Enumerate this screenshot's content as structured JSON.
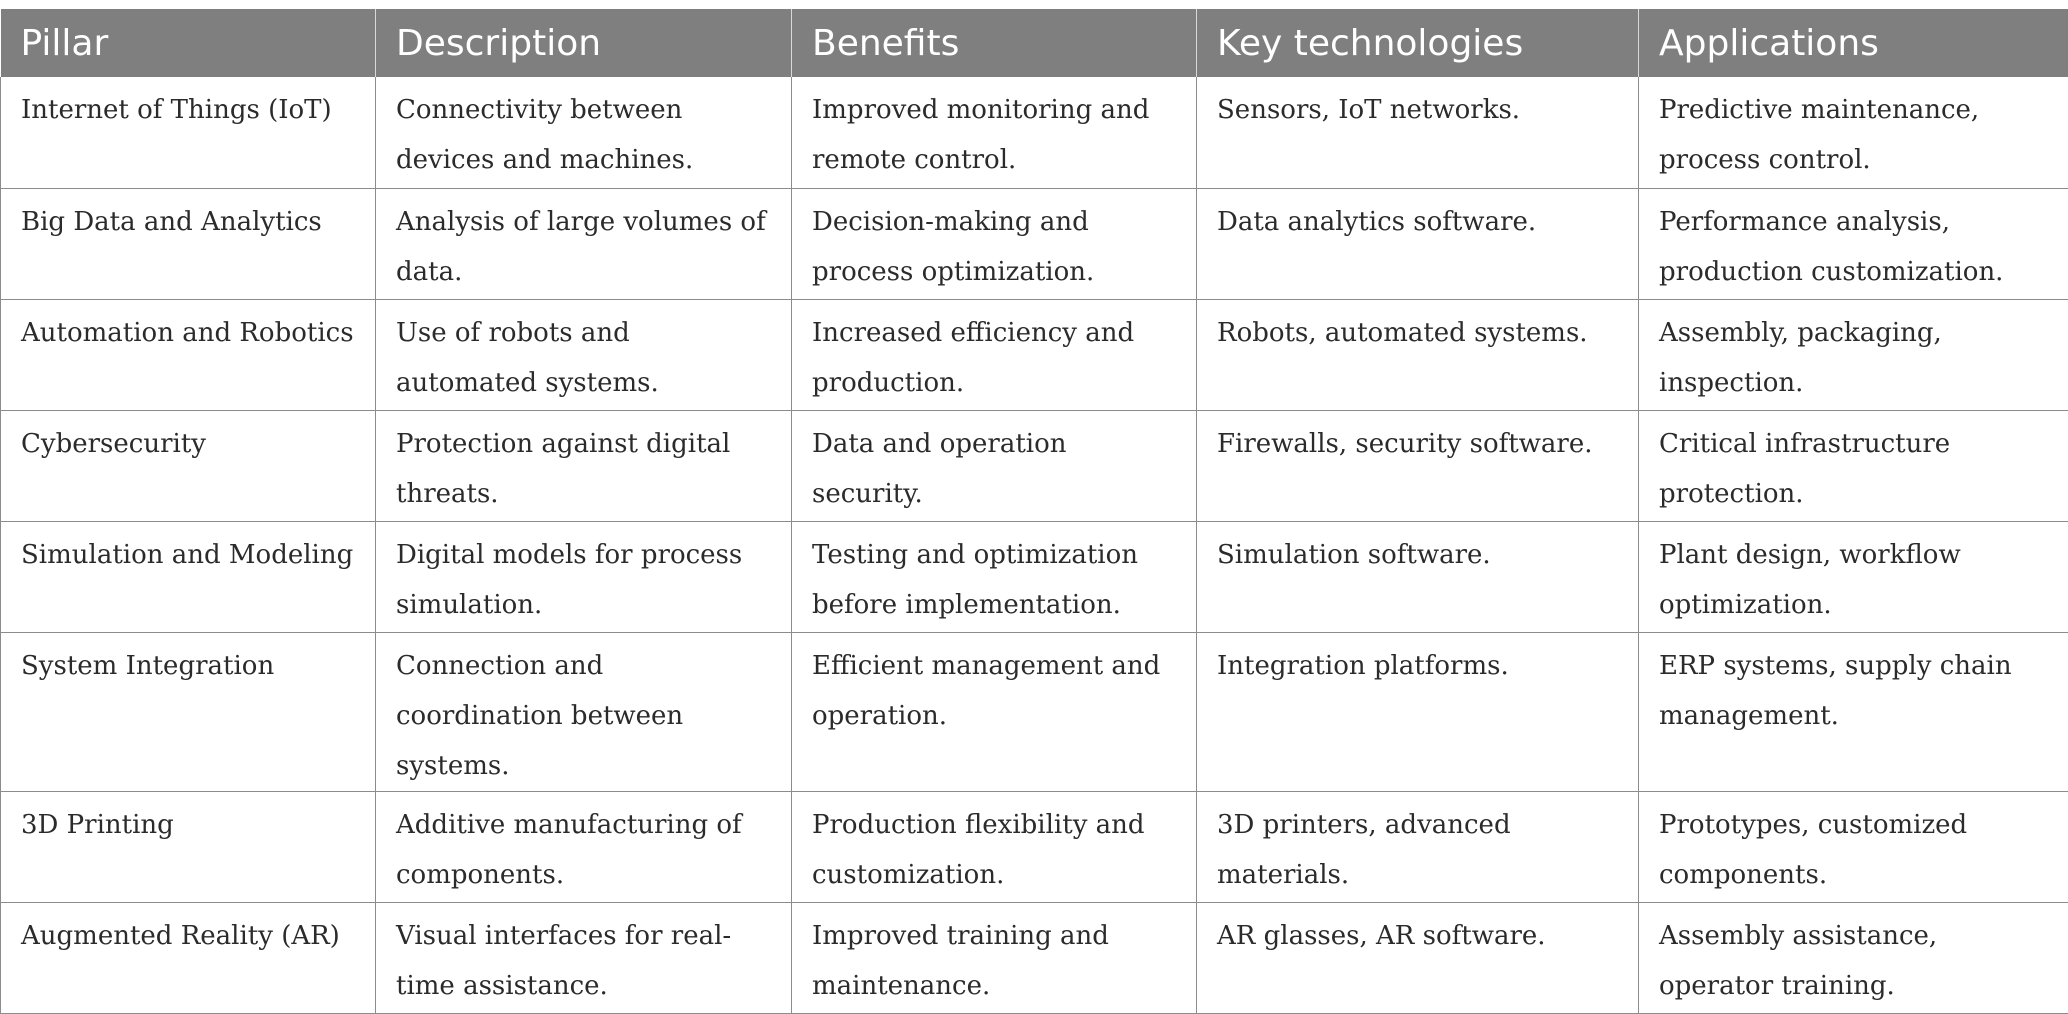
{
  "table": {
    "headers": [
      "Pillar",
      "Description",
      "Benefits",
      "Key technologies",
      "Applications"
    ],
    "rows": [
      [
        "Internet of Things (IoT)",
        "Connectivity between devices and machines.",
        "Improved monitoring and remote control.",
        "Sensors, IoT networks.",
        "Predictive maintenance, process control."
      ],
      [
        "Big Data and Analytics",
        "Analysis of large volumes of data.",
        "Decision-making and process optimization.",
        "Data analytics software.",
        "Performance analysis, production customization."
      ],
      [
        "Automation and Robotics",
        "Use of robots and automated systems.",
        "Increased efficiency and production.",
        "Robots, automated systems.",
        "Assembly, packaging, inspection."
      ],
      [
        "Cybersecurity",
        "Protection against digital threats.",
        "Data and operation security.",
        "Firewalls, security software.",
        "Critical infrastructure protection."
      ],
      [
        "Simulation and Modeling",
        "Digital models for process simulation.",
        "Testing and optimization before implementation.",
        "Simulation software.",
        "Plant design, workflow optimization."
      ],
      [
        "System Integration",
        "Connection and coordination between systems.",
        "Efficient management and operation.",
        "Integration platforms.",
        "ERP systems, supply chain management."
      ],
      [
        "3D Printing",
        "Additive manufacturing of components.",
        "Production flexibility and customization.",
        "3D printers, advanced materials.",
        "Prototypes, customized components."
      ],
      [
        "Augmented Reality (AR)",
        "Visual interfaces for real-time assistance.",
        "Improved training and maintenance.",
        "AR glasses, AR software.",
        "Assembly assistance, operator training."
      ]
    ]
  },
  "colors": {
    "header_bg": "#7f7f7f",
    "header_text": "#ffffff",
    "grid_line": "#8c8c8c",
    "body_text": "#2b2b2b"
  }
}
